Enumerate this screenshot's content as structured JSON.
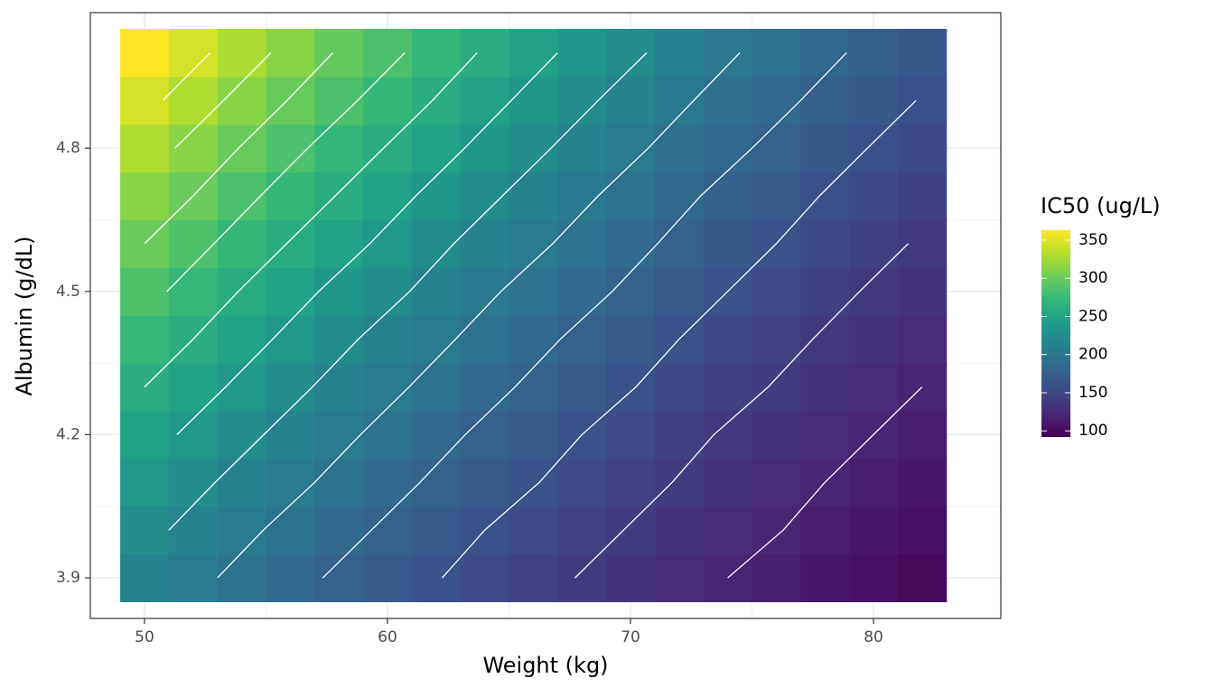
{
  "chart_data": {
    "type": "heatmap",
    "x_label": "Weight (kg)",
    "y_label": "Albumin (g/dL)",
    "legend_title": "IC50 (ug/L)",
    "x": [
      50,
      52,
      54,
      56,
      58,
      60,
      62,
      64,
      66,
      68,
      70,
      72,
      74,
      76,
      78,
      80,
      82
    ],
    "y": [
      3.9,
      4.0,
      4.1,
      4.2,
      4.3,
      4.4,
      4.5,
      4.6,
      4.7,
      4.8,
      4.9,
      5.0
    ],
    "z": [
      [
        215,
        205,
        195,
        186,
        177,
        169,
        161,
        153,
        146,
        139,
        133,
        126,
        120,
        115,
        109,
        104,
        99
      ],
      [
        225,
        215,
        204,
        195,
        186,
        177,
        169,
        160,
        153,
        146,
        139,
        132,
        126,
        121,
        114,
        109,
        104
      ],
      [
        236,
        225,
        214,
        205,
        195,
        186,
        177,
        168,
        161,
        153,
        146,
        139,
        132,
        126,
        120,
        114,
        109
      ],
      [
        248,
        236,
        225,
        214,
        204,
        195,
        186,
        176,
        168,
        160,
        153,
        145,
        138,
        133,
        126,
        120,
        114
      ],
      [
        260,
        248,
        236,
        225,
        214,
        204,
        195,
        185,
        177,
        168,
        161,
        152,
        145,
        139,
        132,
        126,
        120
      ],
      [
        273,
        260,
        247,
        236,
        224,
        214,
        204,
        194,
        185,
        176,
        169,
        160,
        152,
        146,
        138,
        132,
        126
      ],
      [
        286,
        273,
        259,
        247,
        235,
        225,
        214,
        203,
        194,
        185,
        177,
        168,
        160,
        153,
        145,
        138,
        132
      ],
      [
        300,
        286,
        272,
        259,
        247,
        236,
        224,
        213,
        204,
        194,
        185,
        176,
        167,
        160,
        152,
        145,
        138
      ],
      [
        314,
        300,
        285,
        272,
        259,
        247,
        235,
        224,
        213,
        203,
        194,
        184,
        175,
        168,
        159,
        152,
        145
      ],
      [
        330,
        314,
        299,
        285,
        271,
        259,
        247,
        235,
        224,
        213,
        204,
        193,
        184,
        176,
        167,
        159,
        152
      ],
      [
        346,
        330,
        314,
        299,
        285,
        272,
        259,
        246,
        235,
        223,
        214,
        203,
        193,
        185,
        175,
        167,
        159
      ],
      [
        363,
        346,
        329,
        314,
        298,
        285,
        271,
        258,
        246,
        234,
        224,
        212,
        202,
        194,
        184,
        175,
        167
      ]
    ],
    "contour_levels": [
      100,
      120,
      140,
      160,
      180,
      200,
      220,
      240,
      260,
      280,
      300,
      320,
      340,
      360
    ],
    "contour_color": "#ffffff",
    "colormap": [
      "#440154",
      "#482878",
      "#3e4989",
      "#31688e",
      "#26828e",
      "#1f9e89",
      "#35b779",
      "#6ece58",
      "#b5de2b",
      "#fde725"
    ],
    "colorbar_lim": [
      92,
      363
    ],
    "colorbar_ticks": [
      100,
      150,
      200,
      250,
      300,
      350
    ],
    "xlim": [
      47.77,
      85.24
    ],
    "ylim": [
      3.815,
      5.084
    ],
    "xticks": [
      50,
      60,
      70,
      80
    ],
    "yticks": [
      3.9,
      4.2,
      4.5,
      4.8
    ],
    "grid": true
  }
}
